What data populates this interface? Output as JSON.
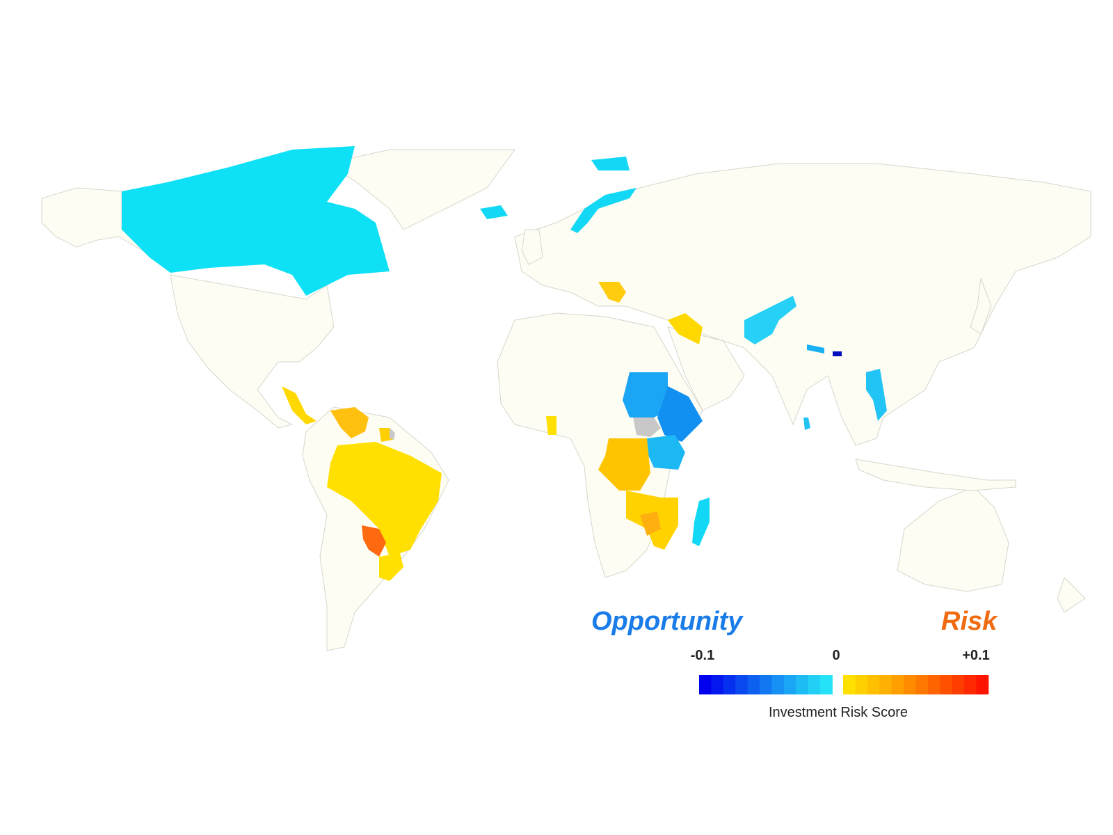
{
  "colors": {
    "background": "#ffffff",
    "land": "#fdfdf3",
    "border": "#d6d6cc",
    "no_data": "#c8c8c8",
    "opportunity_text": "#1a7ce8",
    "risk_text": "#f06a10"
  },
  "legend": {
    "opportunity_label": "Opportunity",
    "risk_label": "Risk",
    "tick_min": "-0.1",
    "tick_mid": "0",
    "tick_max": "+0.1",
    "caption": "Investment Risk Score",
    "negative_swatches": [
      "#0000ee",
      "#0318ee",
      "#0630ef",
      "#0a48f0",
      "#0e60f1",
      "#1278f2",
      "#1690f3",
      "#1aa6f4",
      "#1ebcf5",
      "#22d0f6",
      "#26e2f7"
    ],
    "positive_swatches": [
      "#ffe000",
      "#ffd000",
      "#ffc000",
      "#ffb000",
      "#ffa000",
      "#ff8c00",
      "#ff7800",
      "#ff6400",
      "#ff5000",
      "#ff3c00",
      "#ff2800",
      "#ff1400"
    ]
  },
  "regions": [
    {
      "name": "Canada",
      "score": -0.02,
      "color": "#0ee0f5"
    },
    {
      "name": "Iceland",
      "score": -0.02,
      "color": "#12d8f5"
    },
    {
      "name": "Norway",
      "score": -0.02,
      "color": "#12d8f5"
    },
    {
      "name": "Svalbard",
      "score": -0.02,
      "color": "#12d8f5"
    },
    {
      "name": "Balkans",
      "score": 0.02,
      "color": "#ffcc10"
    },
    {
      "name": "Iraq",
      "score": 0.01,
      "color": "#ffd800"
    },
    {
      "name": "Afghanistan-Pakistan",
      "score": -0.03,
      "color": "#26d0f6"
    },
    {
      "name": "Nepal",
      "score": -0.04,
      "color": "#1ab0f4"
    },
    {
      "name": "Bhutan",
      "score": -0.1,
      "color": "#0010c0"
    },
    {
      "name": "Vietnam-Laos",
      "score": -0.03,
      "color": "#22c4f6"
    },
    {
      "name": "Sri Lanka",
      "score": -0.03,
      "color": "#22c4f6"
    },
    {
      "name": "Central America",
      "score": 0.01,
      "color": "#ffd800"
    },
    {
      "name": "Venezuela-Colombia",
      "score": 0.02,
      "color": "#ffc010"
    },
    {
      "name": "Guyana-Suriname",
      "score": 0.01,
      "color": "#ffd000"
    },
    {
      "name": "French Guiana",
      "score": null,
      "color": "#c8c8c8"
    },
    {
      "name": "Brazil",
      "score": 0.005,
      "color": "#ffe000"
    },
    {
      "name": "Paraguay",
      "score": 0.07,
      "color": "#ff6a10"
    },
    {
      "name": "Uruguay-South Brazil",
      "score": 0.005,
      "color": "#ffe000"
    },
    {
      "name": "Ghana",
      "score": 0.005,
      "color": "#ffe000"
    },
    {
      "name": "Sudan",
      "score": -0.05,
      "color": "#1aa6f4"
    },
    {
      "name": "Ethiopia",
      "score": -0.06,
      "color": "#1290f2"
    },
    {
      "name": "South Sudan",
      "score": null,
      "color": "#c8c8c8"
    },
    {
      "name": "East Africa",
      "score": -0.04,
      "color": "#1cb8f4"
    },
    {
      "name": "DR Congo",
      "score": 0.02,
      "color": "#ffc400"
    },
    {
      "name": "Southern Africa",
      "score": 0.01,
      "color": "#ffd200"
    },
    {
      "name": "Zimbabwe",
      "score": 0.03,
      "color": "#ffb010"
    },
    {
      "name": "Madagascar",
      "score": -0.02,
      "color": "#12d8f5"
    }
  ]
}
